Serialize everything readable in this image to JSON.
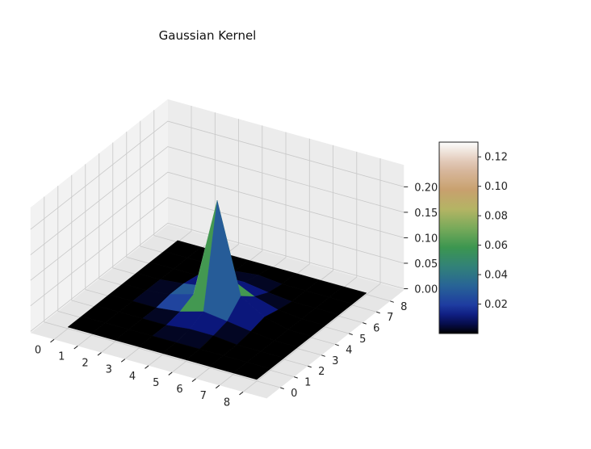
{
  "chart_data": {
    "type": "surface3d",
    "title": "Gaussian Kernel",
    "x_ticks": [
      "0",
      "1",
      "2",
      "3",
      "4",
      "5",
      "6",
      "7",
      "8"
    ],
    "y_ticks": [
      "0",
      "1",
      "2",
      "3",
      "4",
      "5",
      "6",
      "7",
      "8"
    ],
    "z_ticks": [
      "0.00",
      "0.05",
      "0.10",
      "0.15",
      "0.20"
    ],
    "zlim": [
      0,
      0.24
    ],
    "colormap": "gist_earth",
    "colorbar": {
      "ticks": [
        "0.02",
        "0.04",
        "0.06",
        "0.08",
        "0.10",
        "0.12"
      ],
      "range": [
        0.0,
        0.13
      ]
    },
    "grid": true,
    "surface_values": [
      [
        0,
        0,
        0,
        0,
        0,
        0,
        0,
        0,
        0
      ],
      [
        0,
        0,
        0,
        0,
        0,
        0,
        0,
        0,
        0
      ],
      [
        0,
        0,
        0,
        0,
        0.005,
        0.005,
        0,
        0,
        0
      ],
      [
        0,
        0,
        0,
        0.005,
        0.018,
        0.012,
        0.005,
        0,
        0
      ],
      [
        0,
        0,
        0.005,
        0.018,
        0.215,
        0.04,
        0.012,
        0,
        0
      ],
      [
        0,
        0,
        0.005,
        0.012,
        0.04,
        0.018,
        0.005,
        0,
        0
      ],
      [
        0,
        0,
        0,
        0.005,
        0.012,
        0.005,
        0,
        0,
        0
      ],
      [
        0,
        0,
        0,
        0,
        0.005,
        0,
        0,
        0,
        0
      ],
      [
        0,
        0,
        0,
        0,
        0,
        0,
        0,
        0,
        0
      ]
    ],
    "colorbar_cells": [
      [
        0,
        0,
        0,
        0,
        0,
        0,
        0,
        0
      ],
      [
        0,
        0,
        0,
        0.003,
        0.003,
        0,
        0,
        0
      ],
      [
        0,
        0,
        0.003,
        0.011,
        0.011,
        0.003,
        0,
        0
      ],
      [
        0,
        0.003,
        0.022,
        0.06,
        0.03,
        0.011,
        0,
        0
      ],
      [
        0,
        0.003,
        0.03,
        0.131,
        0.06,
        0.011,
        0,
        0
      ],
      [
        0,
        0,
        0.011,
        0.03,
        0.011,
        0.003,
        0,
        0
      ],
      [
        0,
        0,
        0,
        0.003,
        0.003,
        0,
        0,
        0
      ],
      [
        0,
        0,
        0,
        0,
        0,
        0,
        0,
        0
      ]
    ]
  }
}
